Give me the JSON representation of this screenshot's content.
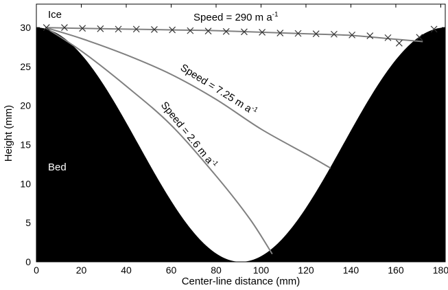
{
  "chart_data": {
    "type": "line",
    "title": "",
    "xlabel": "Center-line distance (mm)",
    "ylabel": "Height (mm)",
    "xlim": [
      0,
      182
    ],
    "ylim": [
      0,
      33
    ],
    "x_ticks": [
      "0",
      "20",
      "40",
      "60",
      "80",
      "100",
      "120",
      "140",
      "160",
      "180"
    ],
    "y_ticks": [
      "0",
      "5",
      "10",
      "15",
      "20",
      "25",
      "30"
    ],
    "grid": false,
    "bed": {
      "label": "Bed",
      "color": "#000000",
      "profile": "cosine",
      "x_min": 0,
      "x_max": 182,
      "min_x": 91,
      "height_max": 30,
      "height_min": 0
    },
    "ice_label": "Ice",
    "series": [
      {
        "name": "Speed = 290 m a-1",
        "label_main": "Speed = 290 m a",
        "label_sup": "-1",
        "color": "#808080",
        "x": [
          4,
          20,
          40,
          60,
          80,
          100,
          120,
          140,
          160,
          172
        ],
        "y": [
          30,
          29.9,
          29.8,
          29.7,
          29.6,
          29.4,
          29.2,
          29.0,
          28.5,
          28.2
        ]
      },
      {
        "name": "Speed = 7.25 m a-1",
        "label_main": "Speed = 7.25 m a",
        "label_sup": "-1",
        "color": "#808080",
        "x": [
          4,
          20,
          40,
          60,
          80,
          100,
          120,
          131
        ],
        "y": [
          30,
          28.6,
          26.5,
          24.0,
          20.8,
          17.0,
          13.8,
          12.0
        ]
      },
      {
        "name": "Speed = 2.6 m a-1",
        "label_main": "Speed = 2.6 m a",
        "label_sup": "-1",
        "color": "#808080",
        "x": [
          4,
          20,
          40,
          60,
          80,
          95,
          105
        ],
        "y": [
          30,
          27.0,
          22.5,
          17.5,
          11.0,
          5.5,
          1.0
        ]
      }
    ],
    "markers": {
      "symbol": "x",
      "color": "#333333",
      "x": [
        4.5,
        12.5,
        20.5,
        28.5,
        36.5,
        44.5,
        52.5,
        60.5,
        68.5,
        76.5,
        84.5,
        92.5,
        100.5,
        108.5,
        116.5,
        124.5,
        132.5,
        140.5,
        148.5,
        156.5,
        161.5,
        170.5,
        177
      ],
      "y": [
        30.0,
        30.0,
        29.9,
        29.85,
        29.8,
        29.8,
        29.75,
        29.7,
        29.6,
        29.55,
        29.5,
        29.45,
        29.4,
        29.3,
        29.25,
        29.2,
        29.15,
        29.05,
        28.95,
        28.7,
        28.0,
        28.75,
        29.8
      ]
    }
  }
}
